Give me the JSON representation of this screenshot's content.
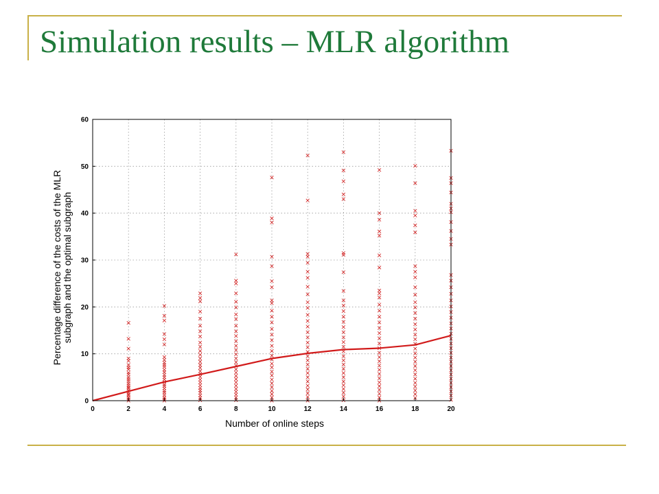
{
  "slide": {
    "title": "Simulation results – MLR algorithm"
  },
  "colors": {
    "title": "#1f7a3a",
    "frame": "#c8b046",
    "series": "#d11a1a"
  },
  "chart_data": {
    "type": "scatter",
    "title": "",
    "xlabel": "Number of online steps",
    "ylabel_lines": [
      "Percentage difference of the costs of the MLR",
      "subgraph and the optimal subgraph"
    ],
    "xlim": [
      0,
      20
    ],
    "ylim": [
      0,
      60
    ],
    "xticks": [
      0,
      2,
      4,
      6,
      8,
      10,
      12,
      14,
      16,
      18,
      20
    ],
    "yticks": [
      0,
      10,
      20,
      30,
      40,
      50,
      60
    ],
    "grid": true,
    "series": [
      {
        "kind": "scatter",
        "marker": "x",
        "points": [
          [
            2,
            16.6
          ],
          [
            2,
            13.2
          ],
          [
            2,
            11.1
          ],
          [
            2,
            9.0
          ],
          [
            2,
            8.5
          ],
          [
            2,
            7.6
          ],
          [
            2,
            7.1
          ],
          [
            2,
            6.7
          ],
          [
            2,
            6.0
          ],
          [
            2,
            5.6
          ],
          [
            2,
            5.0
          ],
          [
            2,
            4.6
          ],
          [
            2,
            4.2
          ],
          [
            2,
            3.7
          ],
          [
            2,
            3.3
          ],
          [
            2,
            2.9
          ],
          [
            2,
            2.6
          ],
          [
            2,
            2.2
          ],
          [
            2,
            1.8
          ],
          [
            2,
            1.4
          ],
          [
            2,
            1.1
          ],
          [
            2,
            0.7
          ],
          [
            2,
            0.3
          ],
          [
            2,
            0.0
          ],
          [
            4,
            20.2
          ],
          [
            4,
            18.1
          ],
          [
            4,
            17.1
          ],
          [
            4,
            14.2
          ],
          [
            4,
            13.1
          ],
          [
            4,
            12.0
          ],
          [
            4,
            9.3
          ],
          [
            4,
            8.7
          ],
          [
            4,
            8.1
          ],
          [
            4,
            7.6
          ],
          [
            4,
            7.2
          ],
          [
            4,
            6.6
          ],
          [
            4,
            6.1
          ],
          [
            4,
            5.5
          ],
          [
            4,
            5.0
          ],
          [
            4,
            4.5
          ],
          [
            4,
            4.0
          ],
          [
            4,
            3.5
          ],
          [
            4,
            3.1
          ],
          [
            4,
            2.6
          ],
          [
            4,
            2.1
          ],
          [
            4,
            1.7
          ],
          [
            4,
            1.2
          ],
          [
            4,
            0.7
          ],
          [
            4,
            0.3
          ],
          [
            4,
            0.0
          ],
          [
            6,
            22.9
          ],
          [
            6,
            21.9
          ],
          [
            6,
            21.2
          ],
          [
            6,
            19.0
          ],
          [
            6,
            17.5
          ],
          [
            6,
            16.0
          ],
          [
            6,
            14.8
          ],
          [
            6,
            13.7
          ],
          [
            6,
            12.4
          ],
          [
            6,
            11.5
          ],
          [
            6,
            10.6
          ],
          [
            6,
            9.8
          ],
          [
            6,
            9.0
          ],
          [
            6,
            8.3
          ],
          [
            6,
            7.6
          ],
          [
            6,
            7.0
          ],
          [
            6,
            6.3
          ],
          [
            6,
            5.7
          ],
          [
            6,
            5.1
          ],
          [
            6,
            4.5
          ],
          [
            6,
            3.9
          ],
          [
            6,
            3.3
          ],
          [
            6,
            2.7
          ],
          [
            6,
            2.2
          ],
          [
            6,
            1.7
          ],
          [
            6,
            1.1
          ],
          [
            6,
            0.6
          ],
          [
            6,
            0.1
          ],
          [
            8,
            31.2
          ],
          [
            8,
            25.6
          ],
          [
            8,
            25.0
          ],
          [
            8,
            22.9
          ],
          [
            8,
            21.1
          ],
          [
            8,
            19.9
          ],
          [
            8,
            18.4
          ],
          [
            8,
            17.4
          ],
          [
            8,
            16.0
          ],
          [
            8,
            14.8
          ],
          [
            8,
            13.8
          ],
          [
            8,
            12.7
          ],
          [
            8,
            11.7
          ],
          [
            8,
            10.8
          ],
          [
            8,
            9.9
          ],
          [
            8,
            9.0
          ],
          [
            8,
            8.2
          ],
          [
            8,
            7.5
          ],
          [
            8,
            6.7
          ],
          [
            8,
            6.0
          ],
          [
            8,
            5.3
          ],
          [
            8,
            4.6
          ],
          [
            8,
            3.9
          ],
          [
            8,
            3.2
          ],
          [
            8,
            2.5
          ],
          [
            8,
            1.9
          ],
          [
            8,
            1.3
          ],
          [
            8,
            0.7
          ],
          [
            8,
            0.1
          ],
          [
            10,
            47.6
          ],
          [
            10,
            38.9
          ],
          [
            10,
            38.0
          ],
          [
            10,
            30.7
          ],
          [
            10,
            28.7
          ],
          [
            10,
            25.5
          ],
          [
            10,
            24.2
          ],
          [
            10,
            21.4
          ],
          [
            10,
            20.8
          ],
          [
            10,
            19.2
          ],
          [
            10,
            17.9
          ],
          [
            10,
            16.7
          ],
          [
            10,
            15.3
          ],
          [
            10,
            14.1
          ],
          [
            10,
            12.9
          ],
          [
            10,
            11.7
          ],
          [
            10,
            10.6
          ],
          [
            10,
            9.6
          ],
          [
            10,
            8.8
          ],
          [
            10,
            7.9
          ],
          [
            10,
            7.1
          ],
          [
            10,
            6.2
          ],
          [
            10,
            5.4
          ],
          [
            10,
            4.5
          ],
          [
            10,
            3.7
          ],
          [
            10,
            2.9
          ],
          [
            10,
            2.1
          ],
          [
            10,
            1.4
          ],
          [
            10,
            0.7
          ],
          [
            10,
            0.0
          ],
          [
            12,
            52.3
          ],
          [
            12,
            42.7
          ],
          [
            12,
            31.3
          ],
          [
            12,
            30.7
          ],
          [
            12,
            29.4
          ],
          [
            12,
            27.5
          ],
          [
            12,
            26.2
          ],
          [
            12,
            24.3
          ],
          [
            12,
            22.7
          ],
          [
            12,
            21.0
          ],
          [
            12,
            19.8
          ],
          [
            12,
            18.3
          ],
          [
            12,
            17.0
          ],
          [
            12,
            15.8
          ],
          [
            12,
            14.6
          ],
          [
            12,
            13.5
          ],
          [
            12,
            12.4
          ],
          [
            12,
            11.4
          ],
          [
            12,
            10.4
          ],
          [
            12,
            9.5
          ],
          [
            12,
            8.6
          ],
          [
            12,
            7.7
          ],
          [
            12,
            6.8
          ],
          [
            12,
            5.9
          ],
          [
            12,
            5.0
          ],
          [
            12,
            4.1
          ],
          [
            12,
            3.2
          ],
          [
            12,
            2.4
          ],
          [
            12,
            1.6
          ],
          [
            12,
            0.8
          ],
          [
            12,
            0.0
          ],
          [
            14,
            53.0
          ],
          [
            14,
            49.1
          ],
          [
            14,
            46.8
          ],
          [
            14,
            44.0
          ],
          [
            14,
            43.0
          ],
          [
            14,
            31.5
          ],
          [
            14,
            31.1
          ],
          [
            14,
            27.4
          ],
          [
            14,
            23.4
          ],
          [
            14,
            21.4
          ],
          [
            14,
            20.3
          ],
          [
            14,
            19.1
          ],
          [
            14,
            17.9
          ],
          [
            14,
            16.8
          ],
          [
            14,
            15.7
          ],
          [
            14,
            14.6
          ],
          [
            14,
            13.5
          ],
          [
            14,
            12.5
          ],
          [
            14,
            11.5
          ],
          [
            14,
            10.5
          ],
          [
            14,
            9.5
          ],
          [
            14,
            8.6
          ],
          [
            14,
            7.7
          ],
          [
            14,
            6.8
          ],
          [
            14,
            5.9
          ],
          [
            14,
            5.0
          ],
          [
            14,
            4.1
          ],
          [
            14,
            3.3
          ],
          [
            14,
            2.5
          ],
          [
            14,
            1.7
          ],
          [
            14,
            0.9
          ],
          [
            14,
            0.1
          ],
          [
            16,
            49.2
          ],
          [
            16,
            40.0
          ],
          [
            16,
            38.6
          ],
          [
            16,
            36.1
          ],
          [
            16,
            35.2
          ],
          [
            16,
            31.0
          ],
          [
            16,
            28.4
          ],
          [
            16,
            23.5
          ],
          [
            16,
            22.9
          ],
          [
            16,
            22.0
          ],
          [
            16,
            20.5
          ],
          [
            16,
            19.2
          ],
          [
            16,
            17.9
          ],
          [
            16,
            16.7
          ],
          [
            16,
            15.5
          ],
          [
            16,
            14.4
          ],
          [
            16,
            13.3
          ],
          [
            16,
            12.2
          ],
          [
            16,
            11.2
          ],
          [
            16,
            10.2
          ],
          [
            16,
            9.3
          ],
          [
            16,
            8.4
          ],
          [
            16,
            7.5
          ],
          [
            16,
            6.6
          ],
          [
            16,
            5.7
          ],
          [
            16,
            4.8
          ],
          [
            16,
            3.9
          ],
          [
            16,
            3.1
          ],
          [
            16,
            2.3
          ],
          [
            16,
            1.5
          ],
          [
            16,
            0.7
          ],
          [
            16,
            0.0
          ],
          [
            18,
            50.1
          ],
          [
            18,
            46.4
          ],
          [
            18,
            40.5
          ],
          [
            18,
            39.5
          ],
          [
            18,
            37.4
          ],
          [
            18,
            35.9
          ],
          [
            18,
            28.7
          ],
          [
            18,
            27.5
          ],
          [
            18,
            26.3
          ],
          [
            18,
            24.2
          ],
          [
            18,
            22.6
          ],
          [
            18,
            21.0
          ],
          [
            18,
            19.9
          ],
          [
            18,
            18.7
          ],
          [
            18,
            17.5
          ],
          [
            18,
            16.3
          ],
          [
            18,
            15.2
          ],
          [
            18,
            14.1
          ],
          [
            18,
            13.1
          ],
          [
            18,
            12.1
          ],
          [
            18,
            11.1
          ],
          [
            18,
            10.1
          ],
          [
            18,
            9.2
          ],
          [
            18,
            8.3
          ],
          [
            18,
            7.4
          ],
          [
            18,
            6.5
          ],
          [
            18,
            5.6
          ],
          [
            18,
            4.7
          ],
          [
            18,
            3.8
          ],
          [
            18,
            3.0
          ],
          [
            18,
            2.2
          ],
          [
            18,
            1.4
          ],
          [
            18,
            0.6
          ],
          [
            20,
            53.3
          ],
          [
            20,
            47.5
          ],
          [
            20,
            46.4
          ],
          [
            20,
            44.4
          ],
          [
            20,
            42.0
          ],
          [
            20,
            41.0
          ],
          [
            20,
            40.2
          ],
          [
            20,
            38.1
          ],
          [
            20,
            36.2
          ],
          [
            20,
            34.5
          ],
          [
            20,
            33.3
          ],
          [
            20,
            26.8
          ],
          [
            20,
            25.6
          ],
          [
            20,
            24.2
          ],
          [
            20,
            22.8
          ],
          [
            20,
            21.4
          ],
          [
            20,
            20.1
          ],
          [
            20,
            18.9
          ],
          [
            20,
            17.7
          ],
          [
            20,
            16.5
          ],
          [
            20,
            15.4
          ],
          [
            20,
            14.3
          ],
          [
            20,
            13.2
          ],
          [
            20,
            12.2
          ],
          [
            20,
            11.2
          ],
          [
            20,
            10.2
          ],
          [
            20,
            9.2
          ],
          [
            20,
            8.3
          ],
          [
            20,
            7.4
          ],
          [
            20,
            6.5
          ],
          [
            20,
            5.6
          ],
          [
            20,
            4.7
          ],
          [
            20,
            3.8
          ],
          [
            20,
            2.9
          ],
          [
            20,
            2.0
          ],
          [
            20,
            1.1
          ],
          [
            20,
            0.2
          ]
        ]
      },
      {
        "kind": "line",
        "x": [
          0,
          2,
          4,
          6,
          8,
          10,
          12,
          14,
          16,
          18,
          20
        ],
        "values": [
          0,
          2.0,
          4.0,
          5.6,
          7.3,
          9.0,
          10.1,
          10.9,
          11.2,
          11.9,
          13.9
        ]
      }
    ]
  }
}
